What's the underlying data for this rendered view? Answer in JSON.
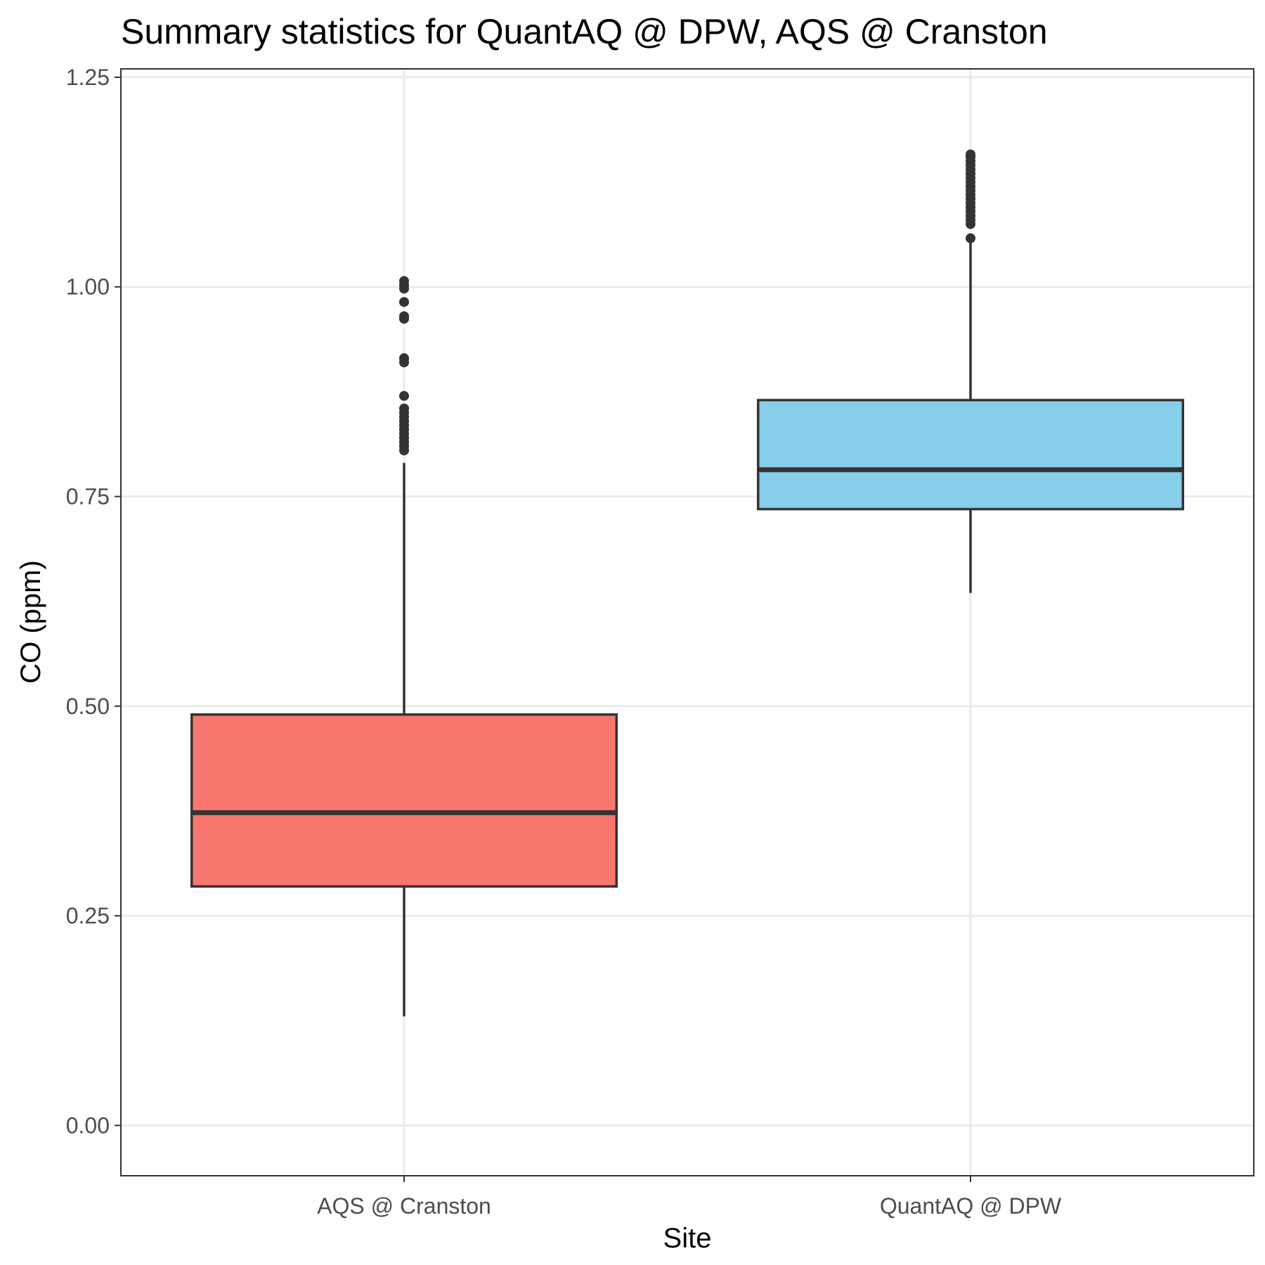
{
  "chart_data": {
    "type": "box",
    "title": "Summary statistics for QuantAQ @ DPW, AQS @ Cranston",
    "xlabel": "Site",
    "ylabel": "CO (ppm)",
    "ylim": [
      -0.06,
      1.26
    ],
    "yticks": [
      0.0,
      0.25,
      0.5,
      0.75,
      1.0,
      1.25
    ],
    "ytick_labels": [
      "0.00",
      "0.25",
      "0.50",
      "0.75",
      "1.00",
      "1.25"
    ],
    "grid": true,
    "legend": "none",
    "categories": [
      "AQS @ Cranston",
      "QuantAQ @ DPW"
    ],
    "boxes": [
      {
        "category": "AQS @ Cranston",
        "fill": "#F8766D",
        "whisker_low": 0.13,
        "q1": 0.285,
        "median": 0.373,
        "q3": 0.49,
        "whisker_high": 0.79,
        "outliers": [
          0.805,
          0.81,
          0.815,
          0.82,
          0.825,
          0.83,
          0.835,
          0.84,
          0.845,
          0.85,
          0.855,
          0.87,
          0.91,
          0.915,
          0.962,
          0.965,
          0.982,
          0.998,
          1.002,
          1.007
        ]
      },
      {
        "category": "QuantAQ @ DPW",
        "fill": "#87CEEB",
        "whisker_low": 0.635,
        "q1": 0.735,
        "median": 0.782,
        "q3": 0.865,
        "whisker_high": 1.055,
        "outliers": [
          1.058,
          1.075,
          1.08,
          1.085,
          1.09,
          1.095,
          1.1,
          1.105,
          1.11,
          1.115,
          1.12,
          1.125,
          1.13,
          1.135,
          1.14,
          1.145,
          1.15,
          1.155,
          1.158
        ]
      }
    ]
  }
}
